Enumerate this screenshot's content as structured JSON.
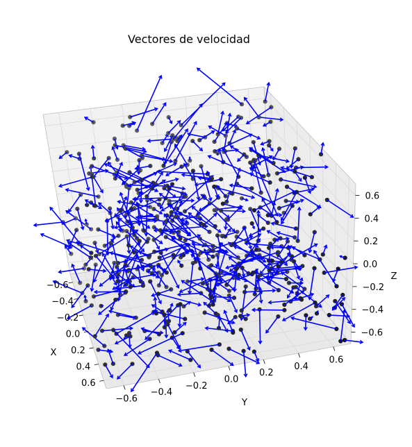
{
  "chart_data": {
    "type": "scatter",
    "variant": "3d-quiver",
    "title": "Vectores de velocidad",
    "xlabel": "X",
    "ylabel": "Y",
    "zlabel": "Z",
    "xlim": [
      -0.7,
      0.7
    ],
    "ylim": [
      -0.7,
      0.7
    ],
    "zlim": [
      -0.7,
      0.7
    ],
    "x_ticks": [
      "−0.6",
      "−0.4",
      "−0.2",
      "0.0",
      "0.2",
      "0.4",
      "0.6"
    ],
    "y_ticks": [
      "−0.6",
      "−0.4",
      "−0.2",
      "0.0",
      "0.2",
      "0.4",
      "0.6"
    ],
    "z_ticks": [
      "−0.6",
      "−0.4",
      "−0.2",
      "0.0",
      "0.2",
      "0.4",
      "0.6"
    ],
    "x_tick_values": [
      -0.6,
      -0.4,
      -0.2,
      0.0,
      0.2,
      0.4,
      0.6
    ],
    "y_tick_values": [
      -0.6,
      -0.4,
      -0.2,
      0.0,
      0.2,
      0.4,
      0.6
    ],
    "z_tick_values": [
      -0.6,
      -0.4,
      -0.2,
      0.0,
      0.2,
      0.4,
      0.6
    ],
    "grid": true,
    "point_color": "#000000",
    "arrow_color": "#0000ff",
    "pane_color": "#f2f2f2",
    "grid_color": "#d9d9d9",
    "view": {
      "elev": 25,
      "azim": -20
    },
    "particle_count": 500,
    "position_range": [
      -0.7,
      0.7
    ],
    "velocity_scale": 0.12,
    "random_seed": 7
  }
}
